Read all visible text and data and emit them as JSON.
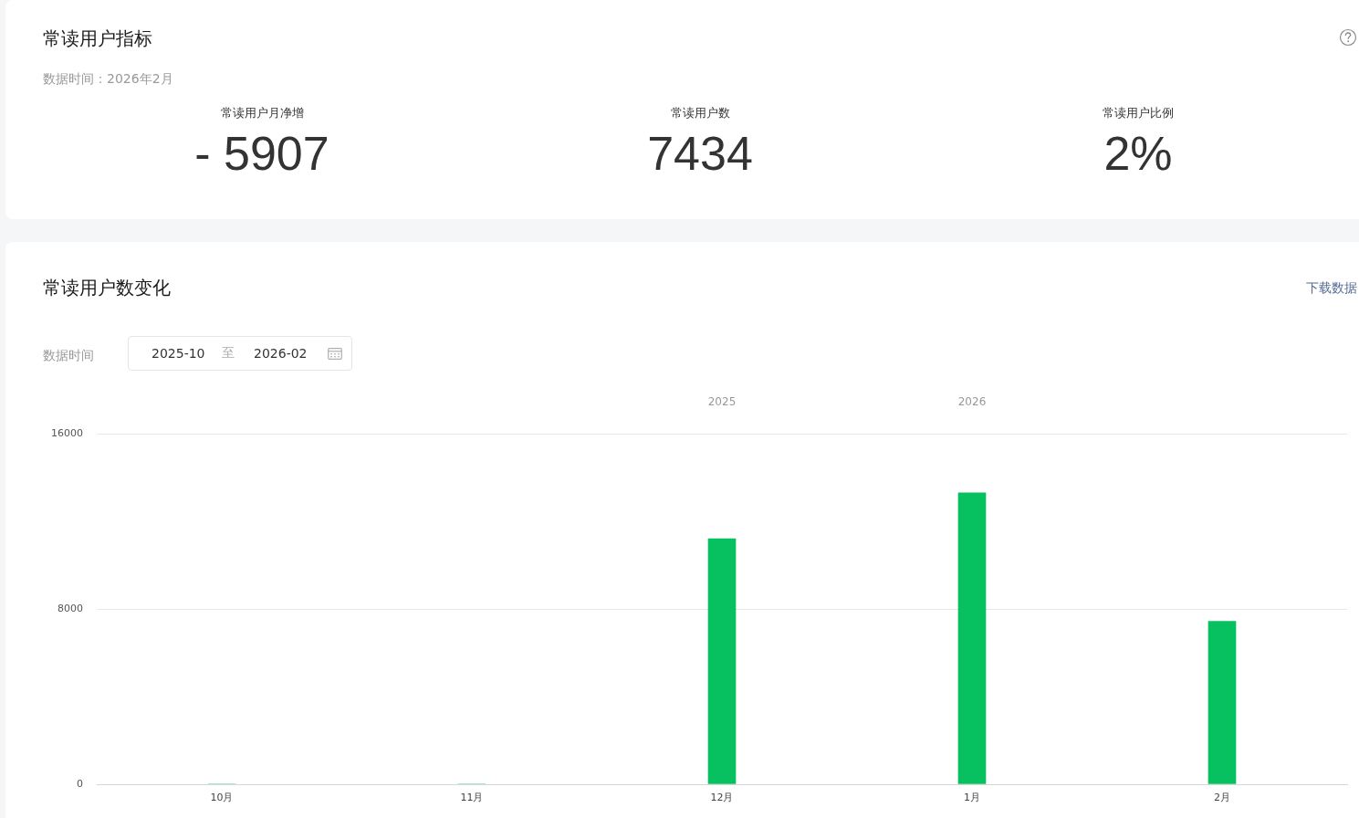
{
  "chart_data": [
    {
      "type": "other",
      "title": "常读用户指标",
      "subtitle": "数据时间：2026年2月",
      "annotations": [
        "常读用户月净增",
        "- 5907",
        "常读用户数",
        "7434",
        "常读用户比例",
        "2%"
      ]
    },
    {
      "type": "bar",
      "title": "常读用户数变化",
      "categories": [
        "10月",
        "11月",
        "12月",
        "1月",
        "2月"
      ],
      "values": [
        0,
        0,
        11200,
        13300,
        7434
      ],
      "color": "#07c160",
      "ylim": [
        0,
        16000
      ],
      "yticks": [
        0,
        8000,
        16000
      ],
      "grid": "y",
      "annotations": [
        "下载数据",
        "数据时间",
        "2025-10",
        "至",
        "2026-02",
        "2025",
        "2026"
      ]
    }
  ]
}
